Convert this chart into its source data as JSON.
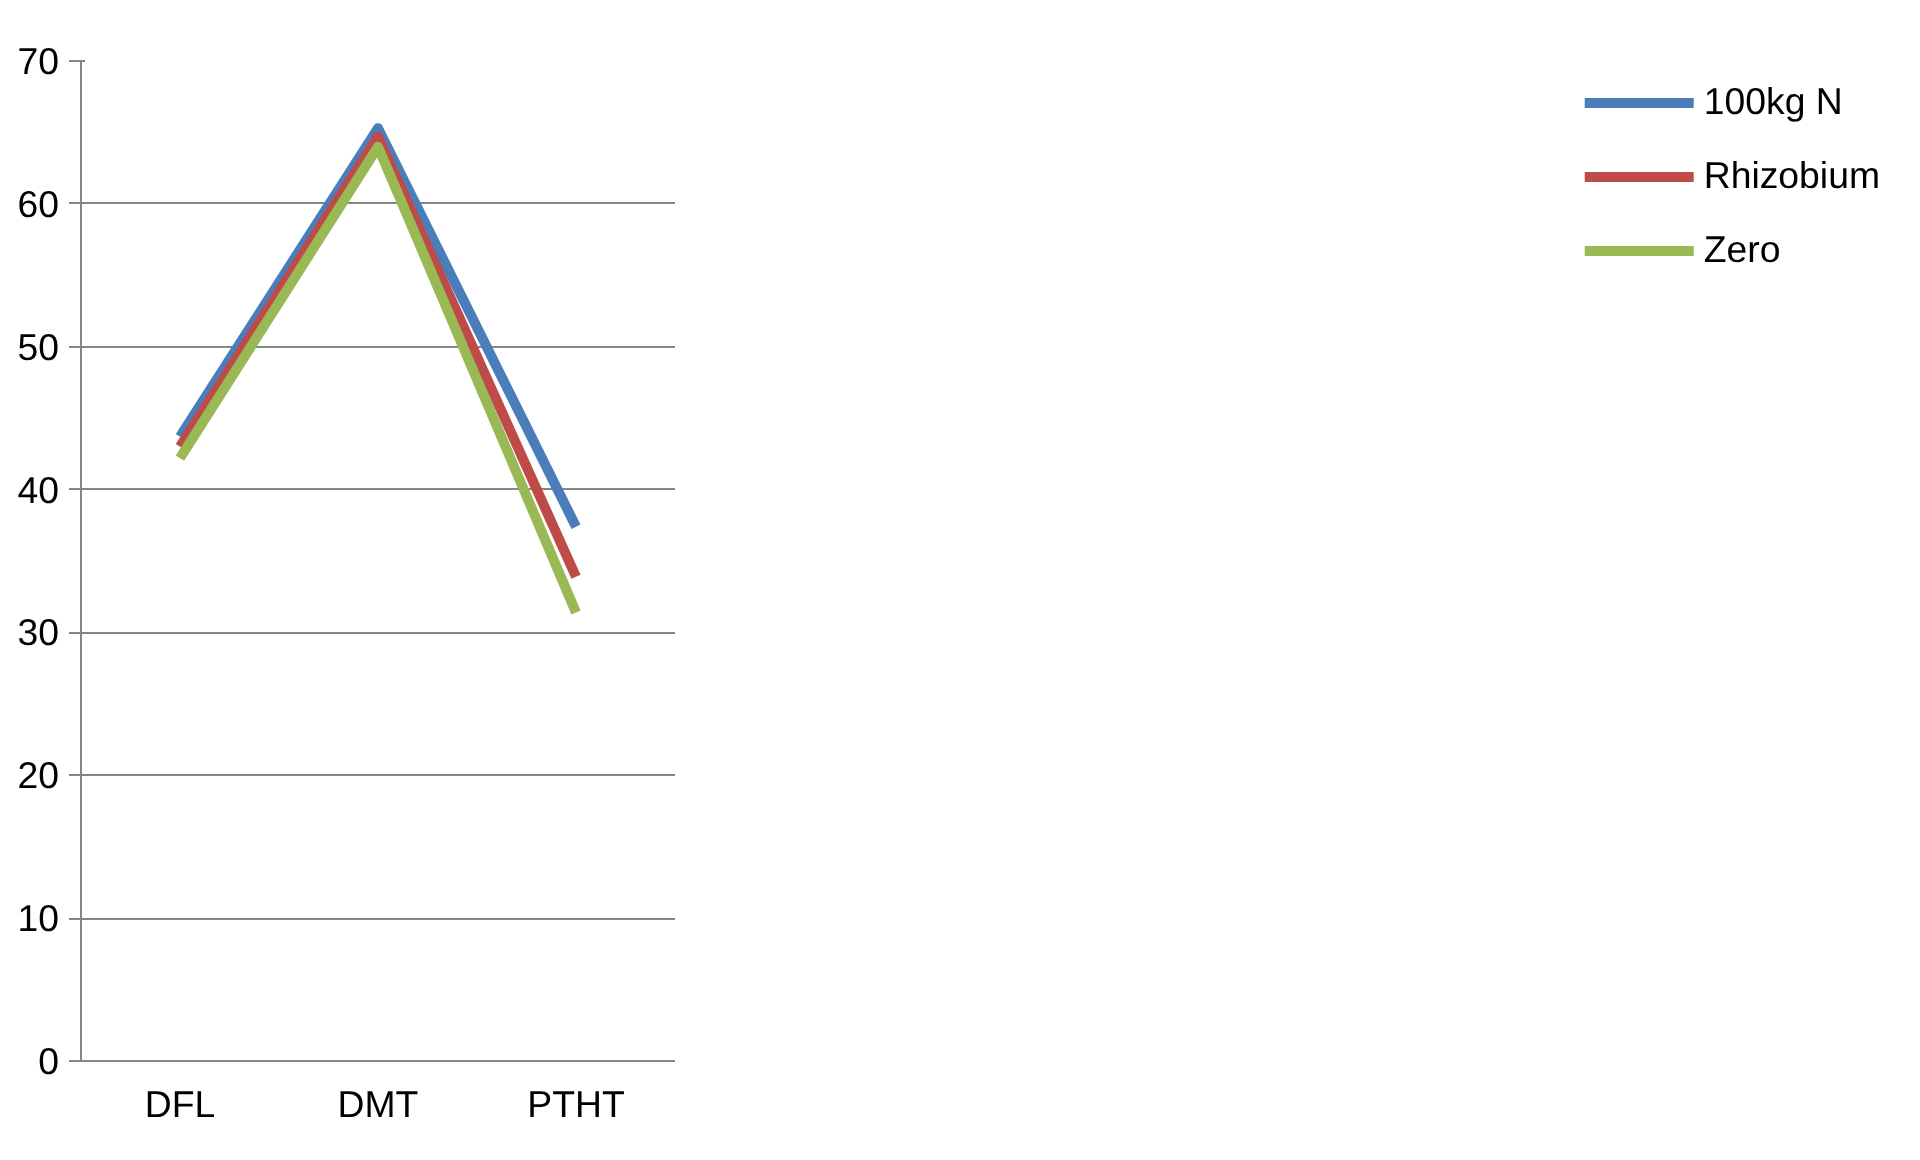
{
  "chart_data": {
    "type": "line",
    "categories": [
      "DFL",
      "DMT",
      "PTHT"
    ],
    "series": [
      {
        "name": "100kg N",
        "color": "#4a7ebb",
        "values": [
          43.7,
          65.3,
          37.4
        ]
      },
      {
        "name": "Rhizobium",
        "color": "#be4b48",
        "values": [
          43.0,
          64.7,
          33.9
        ]
      },
      {
        "name": "Zero",
        "color": "#98b954",
        "values": [
          42.2,
          64.0,
          31.4
        ]
      }
    ],
    "ylim": [
      0,
      70
    ],
    "yticks": [
      0,
      10,
      20,
      30,
      40,
      50,
      60,
      70
    ],
    "grid": "y",
    "legend": "right",
    "marker": "none",
    "line_style": "solid"
  }
}
